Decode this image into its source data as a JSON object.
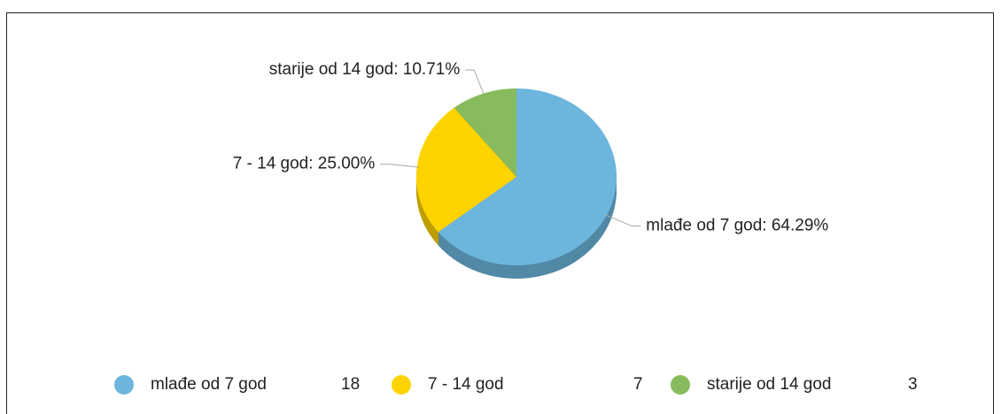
{
  "chart_data": {
    "type": "pie",
    "categories": [
      "mlađe od 7 god",
      "7 - 14 god",
      "starije od 14 god"
    ],
    "values": [
      64.29,
      25.0,
      10.71
    ],
    "value_labels": [
      "mlađe od 7 god: 64.29%",
      "7 - 14 god: 25.00%",
      "starije od 14 god: 10.71%"
    ],
    "counts": [
      18,
      7,
      3
    ],
    "colors": [
      "#6cb6dd",
      "#ffd300",
      "#88bb5e"
    ],
    "legend": "bottom"
  }
}
